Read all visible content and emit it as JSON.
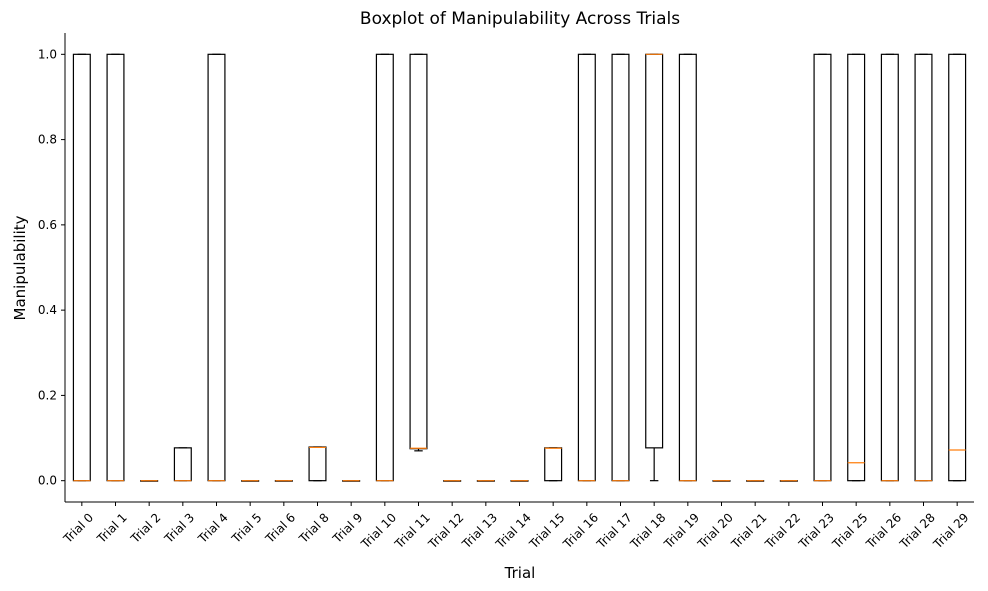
{
  "chart_data": {
    "type": "boxplot",
    "title": "Boxplot of Manipulability Across Trials",
    "xlabel": "Trial",
    "ylabel": "Manipulability",
    "ylim": [
      -0.05,
      1.05
    ],
    "yticks": [
      "0.0",
      "0.2",
      "0.4",
      "0.6",
      "0.8",
      "1.0"
    ],
    "grid": false,
    "colors": {
      "box": "#000000",
      "median": "#ff7f0e"
    },
    "categories": [
      "Trial 0",
      "Trial 1",
      "Trial 2",
      "Trial 3",
      "Trial 4",
      "Trial 5",
      "Trial 6",
      "Trial 8",
      "Trial 9",
      "Trial 10",
      "Trial 11",
      "Trial 12",
      "Trial 13",
      "Trial 14",
      "Trial 15",
      "Trial 16",
      "Trial 17",
      "Trial 18",
      "Trial 19",
      "Trial 20",
      "Trial 21",
      "Trial 22",
      "Trial 23",
      "Trial 25",
      "Trial 26",
      "Trial 28",
      "Trial 29"
    ],
    "boxes": [
      {
        "q1": 0,
        "median": 0,
        "q3": 1,
        "whislo": 0,
        "whishi": 1
      },
      {
        "q1": 0,
        "median": 0,
        "q3": 1,
        "whislo": 0,
        "whishi": 1
      },
      {
        "q1": 0,
        "median": 0,
        "q3": 0,
        "whislo": 0,
        "whishi": 0
      },
      {
        "q1": 0,
        "median": 0,
        "q3": 0.077,
        "whislo": 0,
        "whishi": 0.077
      },
      {
        "q1": 0,
        "median": 0,
        "q3": 1,
        "whislo": 0,
        "whishi": 1
      },
      {
        "q1": 0,
        "median": 0,
        "q3": 0,
        "whislo": 0,
        "whishi": 0
      },
      {
        "q1": 0,
        "median": 0,
        "q3": 0,
        "whislo": 0,
        "whishi": 0
      },
      {
        "q1": 0,
        "median": 0.078,
        "q3": 0.079,
        "whislo": 0,
        "whishi": 0.079
      },
      {
        "q1": 0,
        "median": 0,
        "q3": 0,
        "whislo": 0,
        "whishi": 0
      },
      {
        "q1": 0,
        "median": 0,
        "q3": 1,
        "whislo": 0,
        "whishi": 1
      },
      {
        "q1": 0.075,
        "median": 0.076,
        "q3": 1,
        "whislo": 0.07,
        "whishi": 1
      },
      {
        "q1": 0,
        "median": 0,
        "q3": 0,
        "whislo": 0,
        "whishi": 0
      },
      {
        "q1": 0,
        "median": 0,
        "q3": 0,
        "whislo": 0,
        "whishi": 0
      },
      {
        "q1": 0,
        "median": 0,
        "q3": 0,
        "whislo": 0,
        "whishi": 0
      },
      {
        "q1": 0,
        "median": 0.076,
        "q3": 0.077,
        "whislo": 0,
        "whishi": 0.077
      },
      {
        "q1": 0,
        "median": 0,
        "q3": 1,
        "whislo": 0,
        "whishi": 1
      },
      {
        "q1": 0,
        "median": 0,
        "q3": 1,
        "whislo": 0,
        "whishi": 1
      },
      {
        "q1": 0.077,
        "median": 1,
        "q3": 1,
        "whislo": 0,
        "whishi": 1
      },
      {
        "q1": 0,
        "median": 0,
        "q3": 1,
        "whislo": 0,
        "whishi": 1
      },
      {
        "q1": 0,
        "median": 0,
        "q3": 0,
        "whislo": 0,
        "whishi": 0
      },
      {
        "q1": 0,
        "median": 0,
        "q3": 0,
        "whislo": 0,
        "whishi": 0
      },
      {
        "q1": 0,
        "median": 0,
        "q3": 0,
        "whislo": 0,
        "whishi": 0
      },
      {
        "q1": 0,
        "median": 0,
        "q3": 1,
        "whislo": 0,
        "whishi": 1
      },
      {
        "q1": 0,
        "median": 0.042,
        "q3": 1,
        "whislo": 0,
        "whishi": 1
      },
      {
        "q1": 0,
        "median": 0,
        "q3": 1,
        "whislo": 0,
        "whishi": 1
      },
      {
        "q1": 0,
        "median": 0,
        "q3": 1,
        "whislo": 0,
        "whishi": 1
      },
      {
        "q1": 0,
        "median": 0.072,
        "q3": 1,
        "whislo": 0,
        "whishi": 1
      }
    ]
  }
}
